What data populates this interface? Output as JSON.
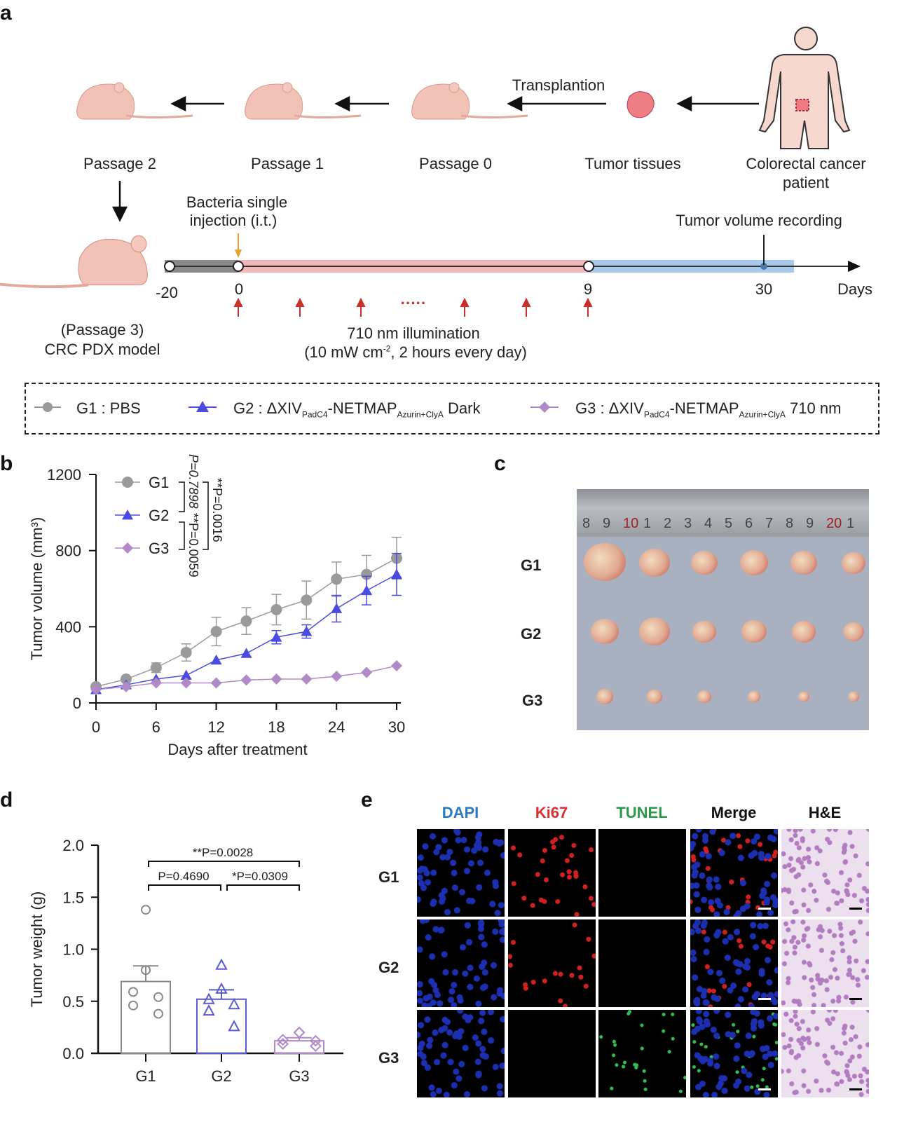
{
  "panel_labels": {
    "a": "a",
    "b": "b",
    "c": "c",
    "d": "d",
    "e": "e"
  },
  "schematic": {
    "steps": [
      "Passage 2",
      "Passage 1",
      "Passage 0",
      "Tumor tissues",
      "Colorectal cancer",
      "patient"
    ],
    "transplant_label": "Transplantion",
    "model_label_1": "(Passage 3)",
    "model_label_2": "CRC PDX model",
    "injection_label_1": "Bacteria single",
    "injection_label_2": "injection (i.t.)",
    "recording_label": "Tumor volume recording",
    "timeline_ticks": [
      "-20",
      "0",
      "9",
      "30"
    ],
    "days_label": "Days",
    "illumination_1": "710 nm illumination",
    "illumination_2a": "(10 mW cm",
    "illumination_sup": "-2",
    "illumination_2b": ", 2 hours every day)",
    "dots": "·····",
    "colors": {
      "pretreatment": "#8a8a8a",
      "illumination": "#f4b6bb",
      "followup": "#a9c9ea",
      "injection_arrow": "#e8a030",
      "light_arrow": "#c9302c"
    }
  },
  "legend": {
    "g1": "G1 : PBS",
    "g2_prefix": "G2 : ΔXIV",
    "sub1": "PadC4",
    "mid": "-NETMAP",
    "sub2": "Azurin+ClyA",
    "g2_suffix": " Dark",
    "g3_prefix": "G3 : ΔXIV",
    "g3_suffix": " 710 nm"
  },
  "chart_data": [
    {
      "type": "line",
      "panel": "b",
      "xlabel": "Days after treatment",
      "ylabel": "Tumor volume (mm³)",
      "xlim": [
        0,
        30
      ],
      "ylim": [
        0,
        1200
      ],
      "xticks": [
        "0",
        "6",
        "12",
        "18",
        "24",
        "30"
      ],
      "yticks": [
        "0",
        "400",
        "800",
        "1200"
      ],
      "x": [
        0,
        3,
        6,
        9,
        12,
        15,
        18,
        21,
        24,
        27,
        30
      ],
      "series": [
        {
          "name": "G1",
          "color": "#9a9a9a",
          "marker": "circle",
          "values": [
            85,
            125,
            185,
            265,
            375,
            430,
            490,
            540,
            650,
            675,
            760
          ],
          "error": [
            0,
            0,
            25,
            45,
            75,
            70,
            80,
            100,
            90,
            100,
            110
          ]
        },
        {
          "name": "G2",
          "color": "#4b4be0",
          "marker": "triangle",
          "values": [
            70,
            95,
            125,
            145,
            225,
            260,
            345,
            375,
            495,
            590,
            675
          ],
          "error": [
            0,
            0,
            0,
            0,
            0,
            0,
            35,
            35,
            70,
            75,
            110
          ]
        },
        {
          "name": "G3",
          "color": "#b08ac8",
          "marker": "diamond",
          "values": [
            70,
            85,
            105,
            105,
            105,
            120,
            125,
            125,
            140,
            160,
            195
          ],
          "error": [
            0,
            0,
            0,
            0,
            0,
            0,
            0,
            0,
            0,
            0,
            0
          ]
        }
      ],
      "stats": [
        "P=0.7898",
        "**P=0.0059",
        "**P=0.0016"
      ],
      "legend_placement": "top-left"
    },
    {
      "type": "bar",
      "panel": "d",
      "ylabel": "Tumor weight (g)",
      "ylim": [
        0,
        2.0
      ],
      "yticks": [
        "0.0",
        "0.5",
        "1.0",
        "1.5",
        "2.0"
      ],
      "categories": [
        "G1",
        "G2",
        "G3"
      ],
      "values": [
        0.69,
        0.52,
        0.12
      ],
      "sem": [
        0.15,
        0.09,
        0.03
      ],
      "points": [
        [
          1.38,
          0.8,
          0.59,
          0.54,
          0.46,
          0.38
        ],
        [
          0.85,
          0.62,
          0.52,
          0.47,
          0.41,
          0.26
        ],
        [
          0.2,
          0.2,
          0.13,
          0.12,
          0.09,
          0.07
        ]
      ],
      "colors": [
        "#8a8a8a",
        "#5a5ad0",
        "#b08ac8"
      ],
      "stats": [
        "**P=0.0028",
        "P=0.4690",
        "*P=0.0309"
      ]
    }
  ],
  "photo": {
    "rows": [
      "G1",
      "G2",
      "G3"
    ],
    "ruler_marks": [
      "8",
      "9",
      "10",
      "1",
      "2",
      "3",
      "4",
      "5",
      "6",
      "7",
      "8",
      "9",
      "20",
      "1"
    ]
  },
  "staining": {
    "columns": [
      "DAPI",
      "Ki67",
      "TUNEL",
      "Merge",
      "H&E"
    ],
    "column_colors": [
      "#2a7bc0",
      "#d93030",
      "#2a9a4a",
      "#111111",
      "#111111"
    ],
    "rows": [
      "G1",
      "G2",
      "G3"
    ]
  }
}
